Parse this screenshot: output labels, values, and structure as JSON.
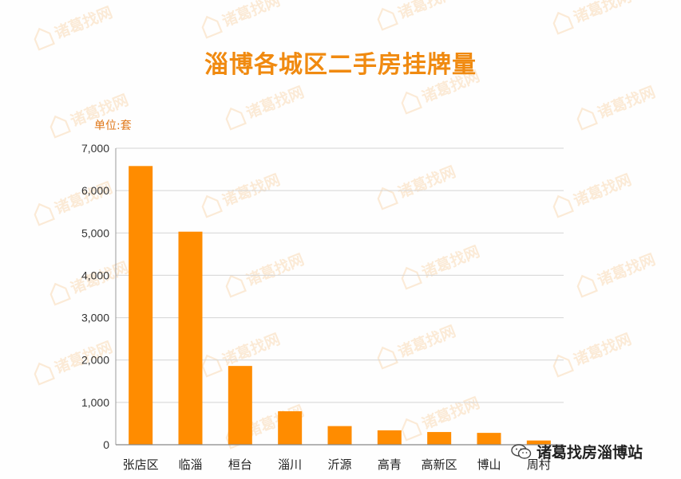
{
  "watermark_text": "诸葛找网",
  "credit": {
    "icon": "wechat-icon",
    "text": "诸葛找房淄博站"
  },
  "colors": {
    "bar": "#ff8c00",
    "title": "#f08a10",
    "grid": "#d4d4d4"
  },
  "chart_data": {
    "type": "bar",
    "title": "淄博各城区二手房挂牌量",
    "unit_label": "单位:套",
    "categories": [
      "张店区",
      "临淄",
      "桓台",
      "淄川",
      "沂源",
      "高青",
      "高新区",
      "博山",
      "周村"
    ],
    "values": [
      6580,
      5030,
      1860,
      790,
      440,
      340,
      300,
      280,
      100
    ],
    "ylim": [
      0,
      7000
    ],
    "yticks": [
      0,
      1000,
      2000,
      3000,
      4000,
      5000,
      6000,
      7000
    ],
    "ytick_labels": [
      "0",
      "1,000",
      "2,000",
      "3,000",
      "4,000",
      "5,000",
      "6,000",
      "7,000"
    ],
    "grid": true,
    "legend": "none"
  }
}
